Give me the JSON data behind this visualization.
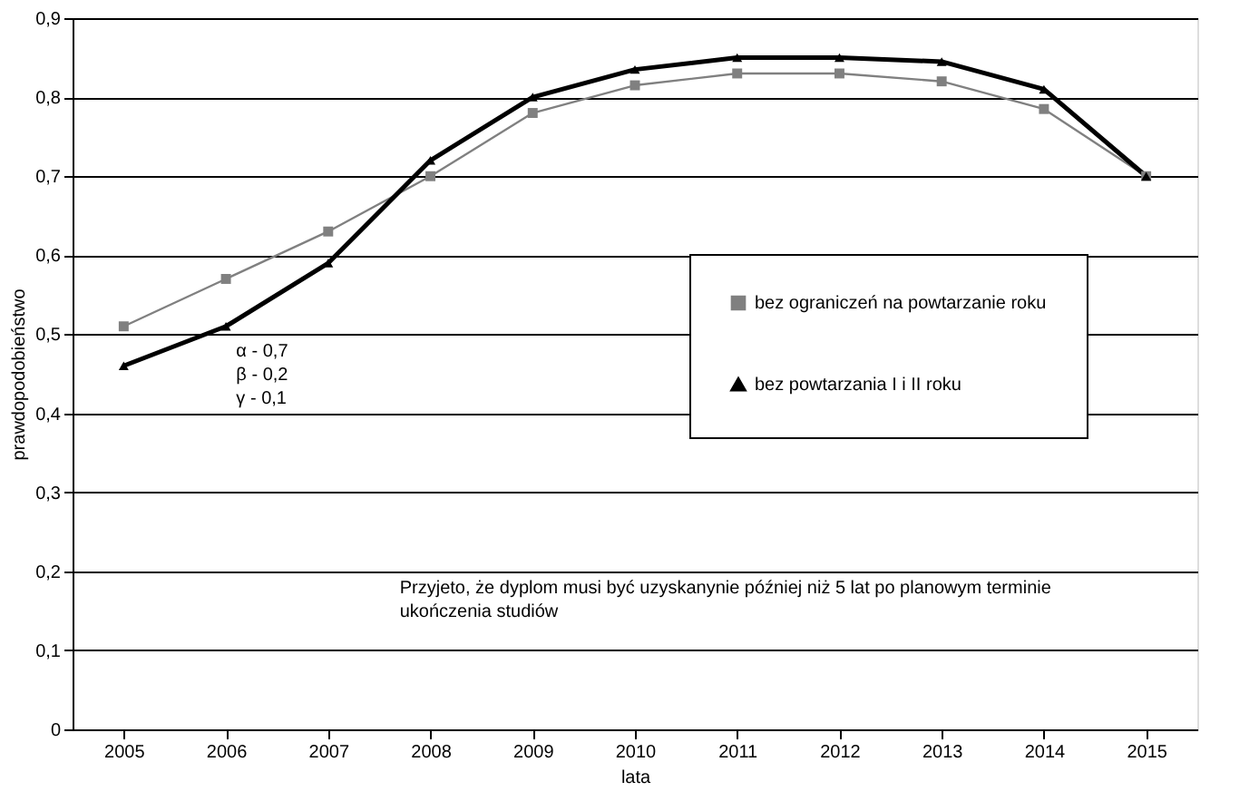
{
  "chart_data": {
    "type": "line",
    "xlabel": "lata",
    "ylabel": "prawdopodobieństwo",
    "categories": [
      "2005",
      "2006",
      "2007",
      "2008",
      "2009",
      "2010",
      "2011",
      "2012",
      "2013",
      "2014",
      "2015"
    ],
    "series": [
      {
        "name": "bez ograniczeń na powtarzanie roku",
        "color": "#808080",
        "marker": "square",
        "values": [
          0.51,
          0.57,
          0.63,
          0.7,
          0.78,
          0.815,
          0.83,
          0.83,
          0.82,
          0.785,
          0.7
        ]
      },
      {
        "name": "bez powtarzania I i II roku",
        "color": "#000000",
        "marker": "triangle",
        "values": [
          0.46,
          0.51,
          0.59,
          0.72,
          0.8,
          0.835,
          0.85,
          0.85,
          0.845,
          0.81,
          0.7
        ]
      }
    ],
    "ylim": [
      0,
      0.9
    ],
    "yticks": [
      {
        "value": 0,
        "label": "0"
      },
      {
        "value": 0.1,
        "label": "0,1"
      },
      {
        "value": 0.2,
        "label": "0,2"
      },
      {
        "value": 0.3,
        "label": "0,3"
      },
      {
        "value": 0.4,
        "label": "0,4"
      },
      {
        "value": 0.5,
        "label": "0,5"
      },
      {
        "value": 0.6,
        "label": "0,6"
      },
      {
        "value": 0.7,
        "label": "0,7"
      },
      {
        "value": 0.8,
        "label": "0,8"
      },
      {
        "value": 0.9,
        "label": "0,9"
      }
    ],
    "grid": "y",
    "legend": "right",
    "line_style": "solid",
    "annotations": [
      "α - 0,7\nβ - 0,2\nγ - 0,1",
      "Przyjeto, że dyplom musi być uzyskanynie później niż 5 lat po planowym terminie\nukończenia studiów"
    ]
  }
}
